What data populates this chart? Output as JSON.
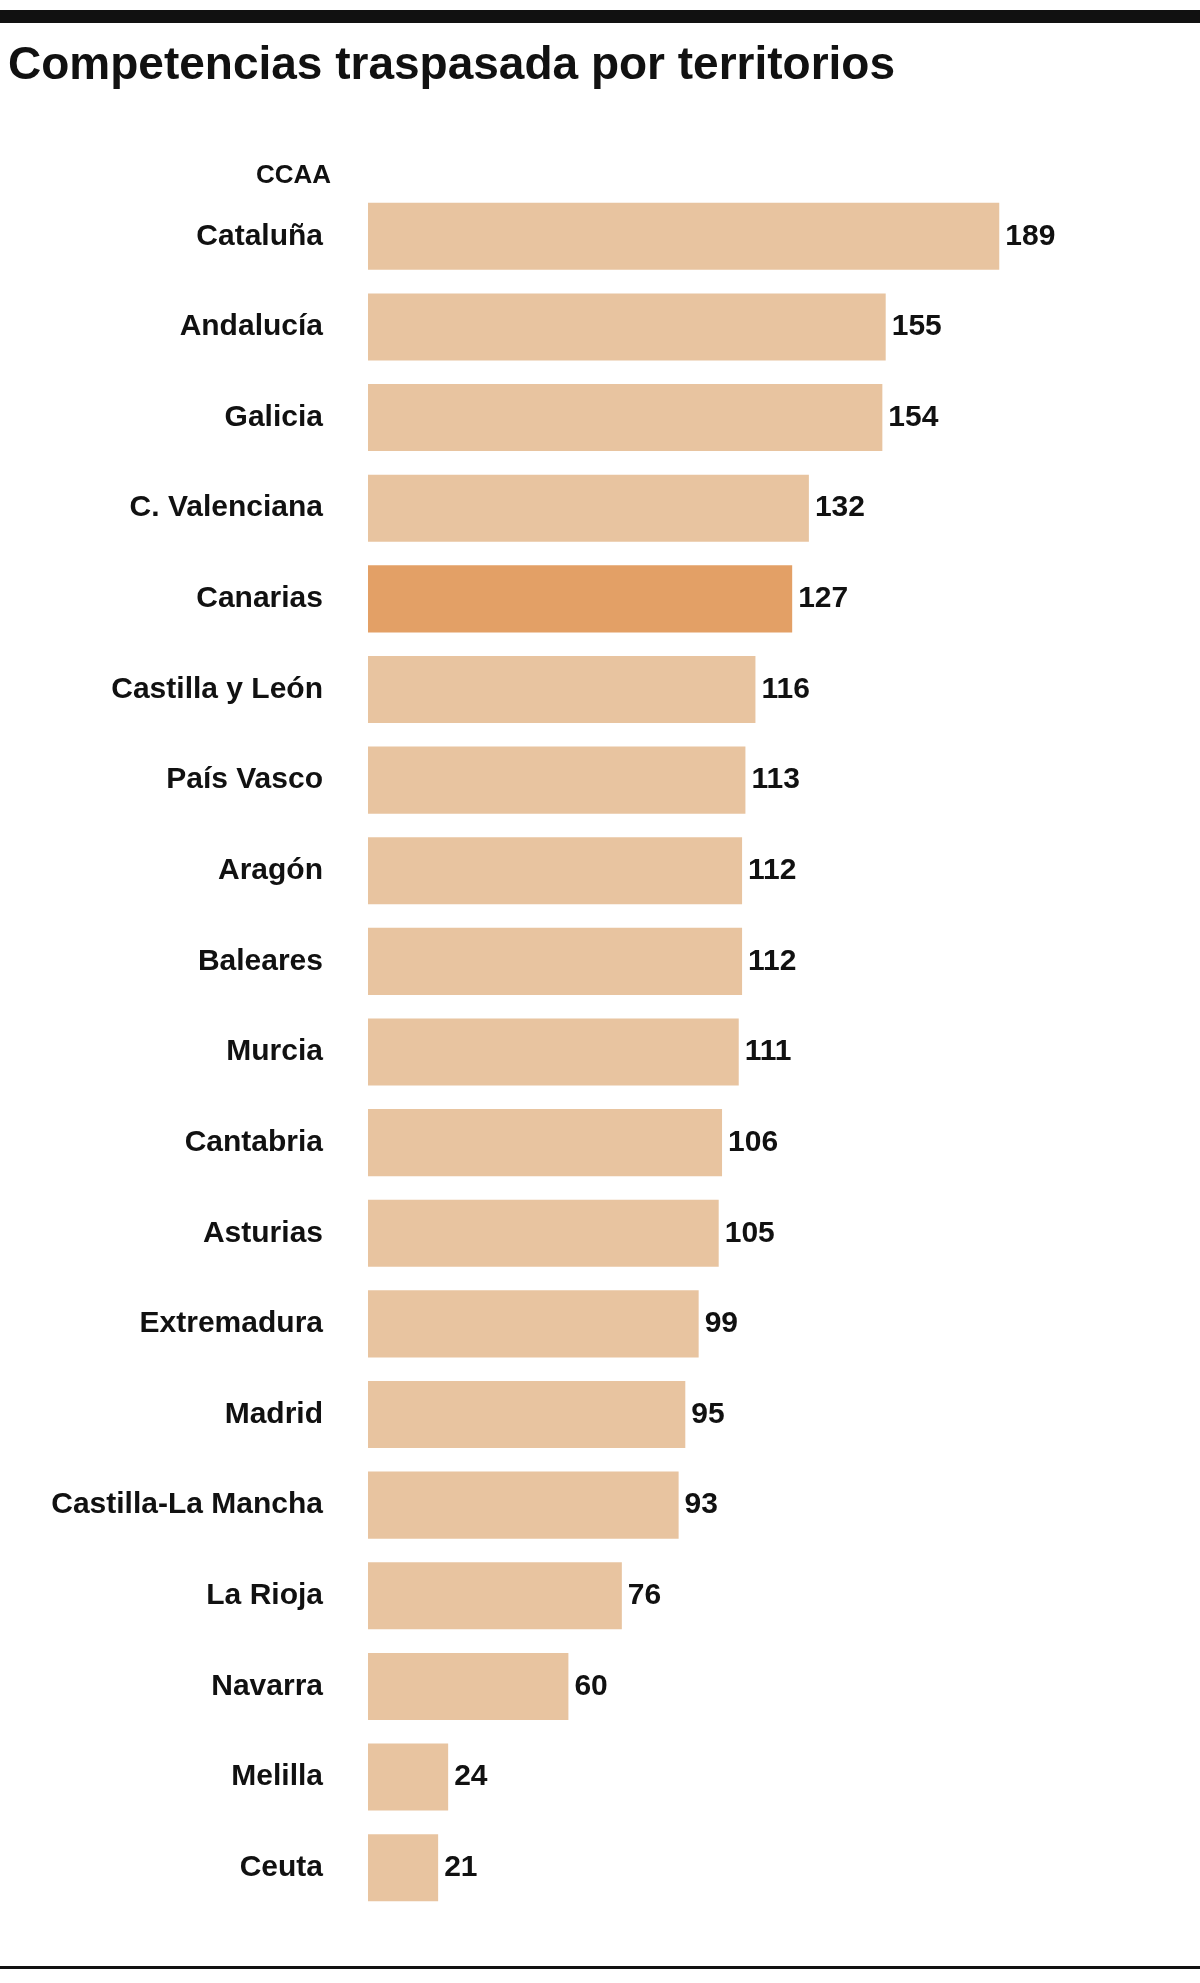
{
  "chart_data": {
    "type": "bar",
    "orientation": "horizontal",
    "title": "Competencias traspasada por territorios",
    "ylabel": "CCAA",
    "categories": [
      "Cataluña",
      "Andalucía",
      "Galicia",
      "C. Valenciana",
      "Canarias",
      "Castilla y León",
      "País Vasco",
      "Aragón",
      "Baleares",
      "Murcia",
      "Cantabria",
      "Asturias",
      "Extremadura",
      "Madrid",
      "Castilla-La Mancha",
      "La Rioja",
      "Navarra",
      "Melilla",
      "Ceuta"
    ],
    "values": [
      189,
      155,
      154,
      132,
      127,
      116,
      113,
      112,
      112,
      111,
      106,
      105,
      99,
      95,
      93,
      76,
      60,
      24,
      21
    ],
    "colors": [
      "#e8c4a0",
      "#e8c4a0",
      "#e8c4a0",
      "#e8c4a0",
      "#e3a066",
      "#e8c4a0",
      "#e8c4a0",
      "#e8c4a0",
      "#e8c4a0",
      "#e8c4a0",
      "#e8c4a0",
      "#e8c4a0",
      "#e8c4a0",
      "#e8c4a0",
      "#e8c4a0",
      "#e8c4a0",
      "#e8c4a0",
      "#e8c4a0",
      "#e8c4a0"
    ],
    "data_labels": true
  }
}
